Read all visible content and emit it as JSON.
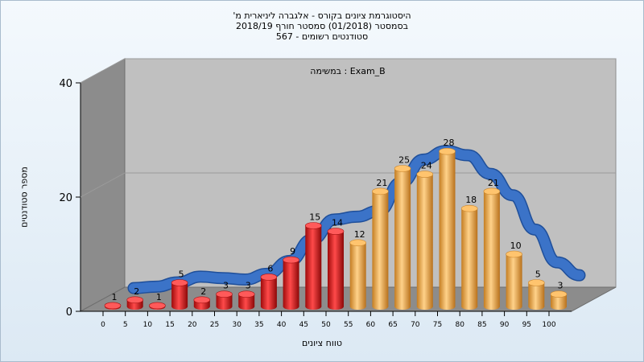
{
  "title_lines": [
    "היסטוגרמת ציונים בקורס - אלגברה ליניארית מ'",
    "בסמסטר  (01/2018)  סמסטר חורף  2018/19",
    "סטודנטים רשומים - 567"
  ],
  "annotation": "במשימה : Exam_B",
  "colors": {
    "fail": "#d61414",
    "pass": "#f0ac4a",
    "curve": "#3b73c8",
    "wall": "#c0c0c0",
    "side_wall": "#8c8c8c",
    "floor": "#8c8c8c"
  },
  "chart_data": {
    "type": "bar",
    "xlabel": "טווח ציונים",
    "ylabel": "מספר סטודנטים",
    "ylim": [
      0,
      40
    ],
    "yticks": [
      0,
      20,
      40
    ],
    "categories": [
      "0",
      "5",
      "10",
      "15",
      "20",
      "25",
      "30",
      "35",
      "40",
      "45",
      "50",
      "55",
      "60",
      "65",
      "70",
      "75",
      "80",
      "85",
      "90",
      "95",
      "100"
    ],
    "values": [
      1,
      2,
      1,
      5,
      2,
      3,
      3,
      6,
      9,
      15,
      14,
      12,
      21,
      25,
      24,
      28,
      18,
      21,
      10,
      5,
      3
    ],
    "fail_threshold": "55",
    "grid": true
  }
}
